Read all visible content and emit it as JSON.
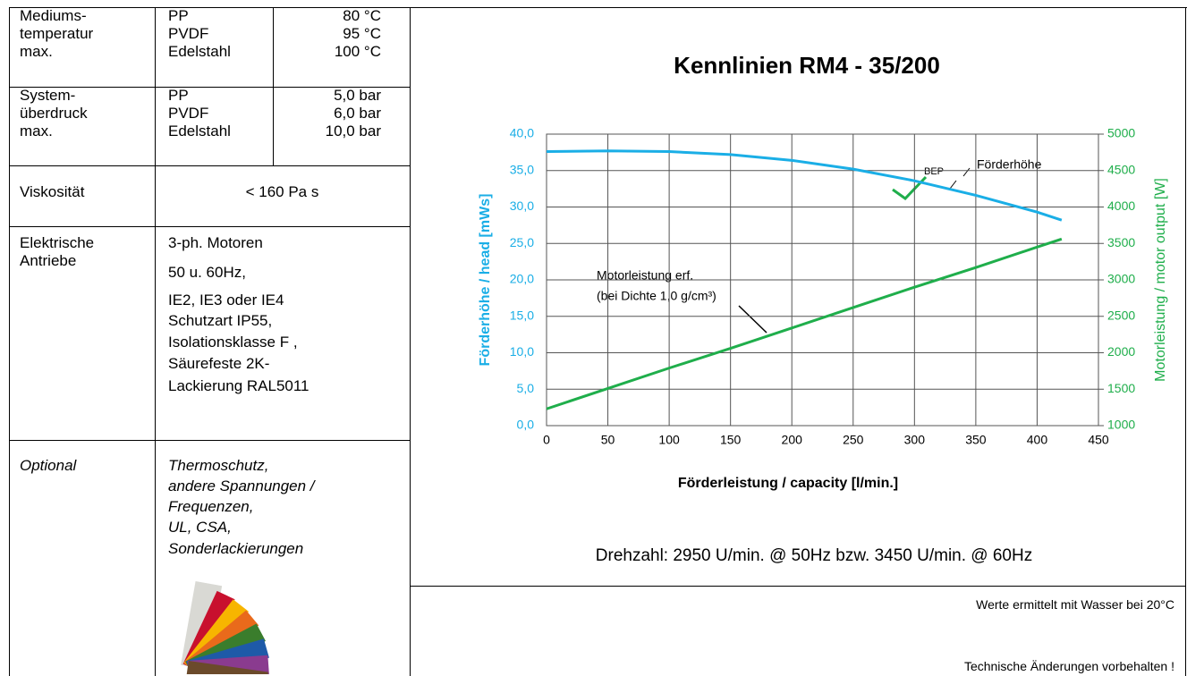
{
  "table": {
    "rows": [
      {
        "label": [
          "Mediums-",
          "temperatur",
          "max."
        ],
        "materials": [
          "PP",
          "PVDF",
          "Edelstahl"
        ],
        "values": [
          "80 °C",
          "95 °C",
          "100 °C"
        ]
      },
      {
        "label": [
          "System-",
          "überdruck",
          "max."
        ],
        "materials": [
          "PP",
          "PVDF",
          "Edelstahl"
        ],
        "values": [
          "5,0 bar",
          "6,0 bar",
          "10,0 bar"
        ]
      },
      {
        "label": [
          "Viskosität"
        ],
        "value": "< 160 Pa s"
      },
      {
        "label": [
          "Elektrische",
          "Antriebe"
        ],
        "lines": [
          "3-ph. Motoren",
          "50 u. 60Hz,",
          "IE2, IE3 oder IE4",
          "Schutzart IP55,",
          "Isolationsklasse F ,",
          "Säurefeste 2K-",
          "Lackierung RAL5011"
        ]
      },
      {
        "label": [
          "Optional"
        ],
        "lines": [
          "Thermoschutz,",
          "andere Spannungen /",
          "Frequenzen,",
          "UL, CSA,",
          "Sonderlackierungen"
        ]
      }
    ]
  },
  "chart_data": {
    "type": "line",
    "title": "Kennlinien  RM4 - 35/200",
    "x_label": "Förderleistung / capacity  [l/min.]",
    "y_label": "Förderhöhe / head  [mWs]",
    "y2_label": "Motorleistung / motor output [W]",
    "footnote": "Drehzahl: 2950 U/min. @ 50Hz  bzw.  3450 U/min. @ 60Hz",
    "annotations": [
      "BEP",
      "(bei Dichte 1,0 g/cm³)"
    ],
    "x": [
      0,
      50,
      100,
      150,
      200,
      250,
      300,
      350,
      400,
      420
    ],
    "series": [
      {
        "name": "Förderhöhe",
        "color": "#1aaee6",
        "values": [
          37.6,
          37.7,
          37.6,
          37.2,
          36.4,
          35.2,
          33.6,
          31.6,
          29.3,
          28.2
        ]
      },
      {
        "name": "Motorleistung erf.",
        "color": "#1fae4b",
        "axis": "y2",
        "values": [
          1230,
          1510,
          1790,
          2060,
          2340,
          2620,
          2900,
          3170,
          3450,
          3560
        ]
      }
    ],
    "xlim": [
      0,
      450
    ],
    "xticks": [
      0,
      50,
      100,
      150,
      200,
      250,
      300,
      350,
      400,
      450
    ],
    "ylim": [
      0,
      40
    ],
    "yticks": [
      {
        "value": 0,
        "label": "0,0"
      },
      {
        "value": 5,
        "label": "5,0"
      },
      {
        "value": 10,
        "label": "10,0"
      },
      {
        "value": 15,
        "label": "15,0"
      },
      {
        "value": 20,
        "label": "20,0"
      },
      {
        "value": 25,
        "label": "25,0"
      },
      {
        "value": 30,
        "label": "30,0"
      },
      {
        "value": 35,
        "label": "35,0"
      },
      {
        "value": 40,
        "label": "40,0"
      }
    ],
    "y2lim": [
      1000,
      5000
    ],
    "y2ticks": [
      1000,
      1500,
      2000,
      2500,
      3000,
      3500,
      4000,
      4500,
      5000
    ],
    "grid": true
  },
  "notes": [
    "Werte ermittelt mit Wasser bei 20°C",
    "Technische Änderungen vorbehalten !"
  ]
}
